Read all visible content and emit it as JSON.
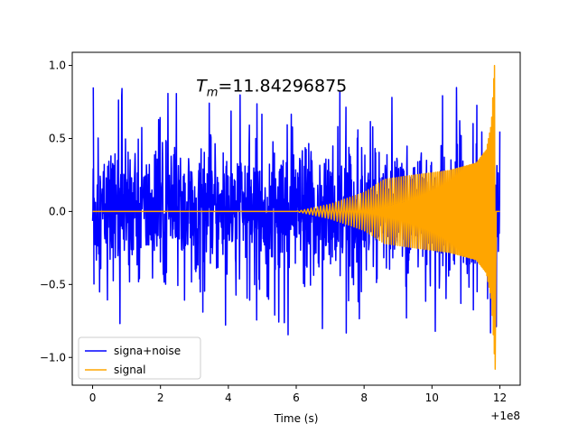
{
  "chart_data": {
    "type": "line",
    "title": "",
    "annotation": {
      "symbol": "T",
      "subscript": "m",
      "text": "=11.84296875",
      "x": 3.05,
      "y": 0.82
    },
    "xlabel": "Time (s)",
    "ylabel": "",
    "x_offset_label": "+1e8",
    "xlim": [
      -0.6,
      12.6
    ],
    "ylim": [
      -1.19,
      1.09
    ],
    "xticks": [
      0,
      2,
      4,
      6,
      8,
      10,
      12
    ],
    "xtick_labels": [
      "0",
      "2",
      "4",
      "6",
      "8",
      "10",
      "12"
    ],
    "yticks": [
      -1.0,
      -0.5,
      0.0,
      0.5,
      1.0
    ],
    "ytick_labels": [
      "−1.0",
      "−0.5",
      "0.0",
      "0.5",
      "1.0"
    ],
    "grid": false,
    "legend": {
      "location": "lower-left"
    },
    "series": [
      {
        "name": "signa+noise",
        "color": "#0000ff",
        "x_range": [
          0,
          12
        ],
        "noise_envelope": {
          "upper": 0.85,
          "lower": -0.86,
          "rms": 0.2
        }
      },
      {
        "name": "signal",
        "color": "#ffa500",
        "x_range": [
          0,
          12
        ],
        "chirp": {
          "onset": 6.0,
          "merger_time": 11.84296875,
          "amplitude_points": [
            [
              6.0,
              0.0
            ],
            [
              7.0,
              0.05
            ],
            [
              8.0,
              0.13
            ],
            [
              8.6,
              0.22
            ],
            [
              9.5,
              0.25
            ],
            [
              10.5,
              0.28
            ],
            [
              11.3,
              0.33
            ],
            [
              11.6,
              0.42
            ],
            [
              11.75,
              0.6
            ],
            [
              11.84296875,
              1.0
            ]
          ],
          "min_value": -1.08,
          "max_value": 1.0
        }
      }
    ]
  }
}
